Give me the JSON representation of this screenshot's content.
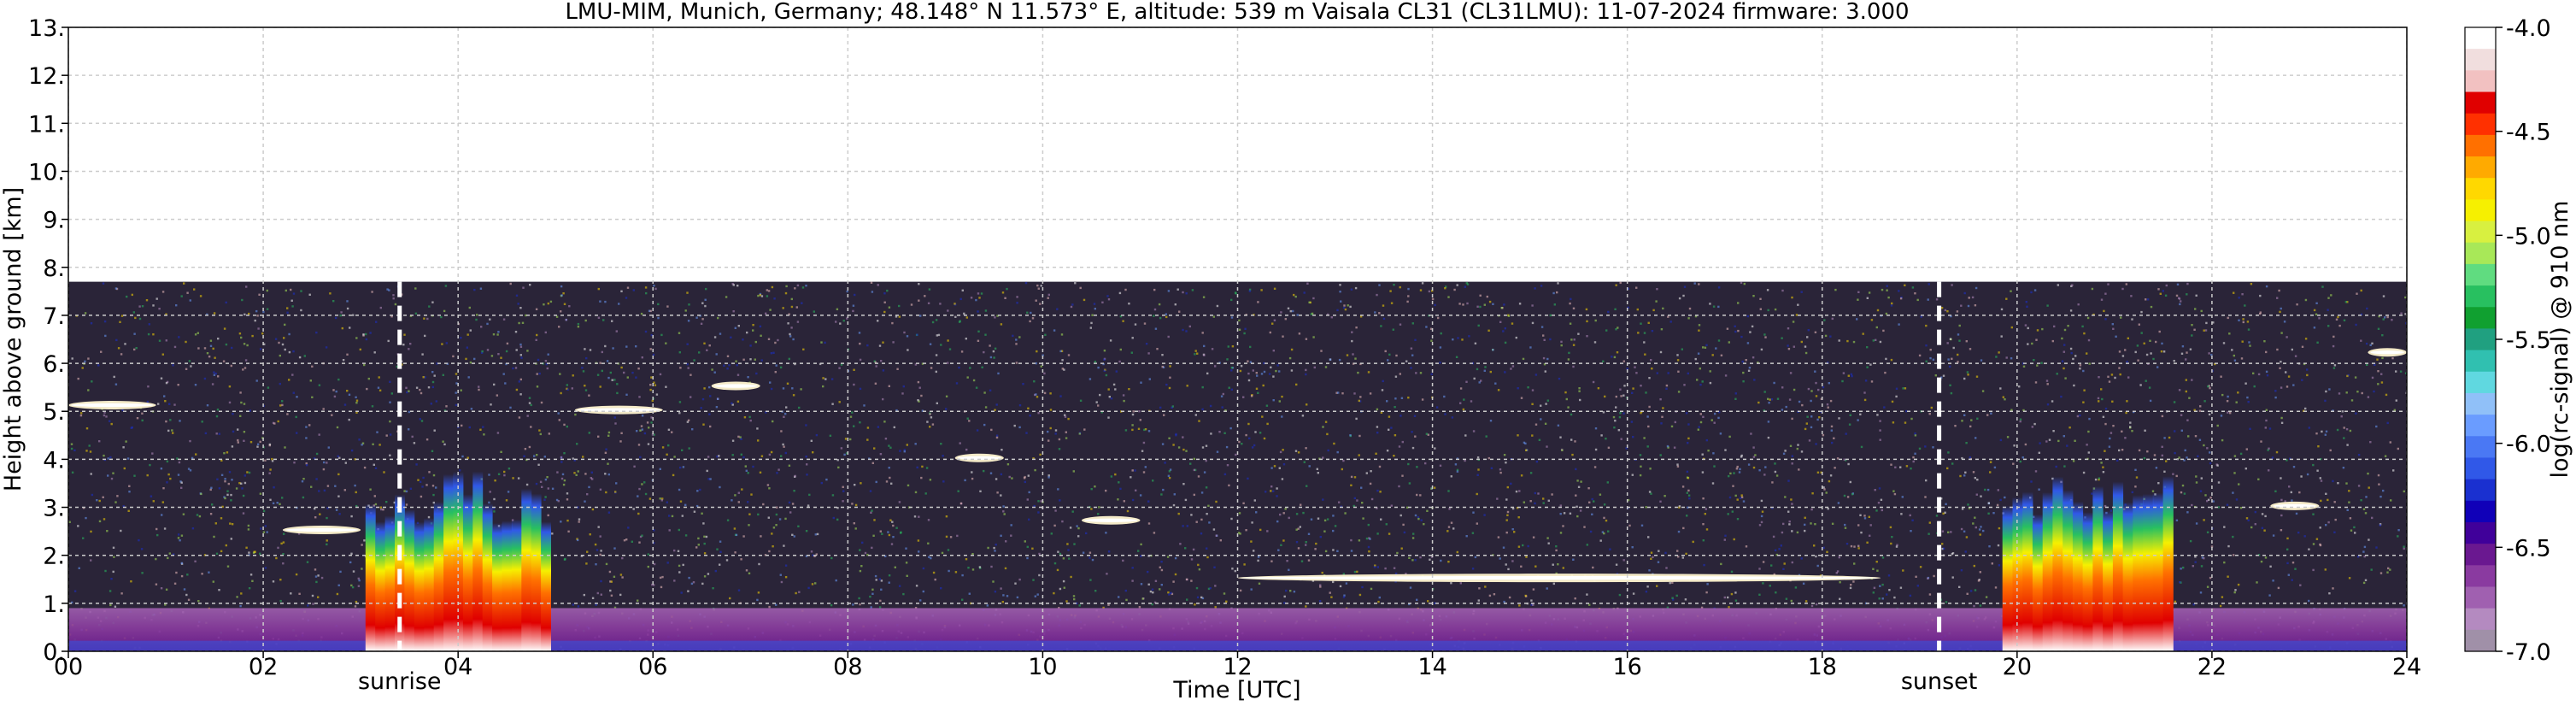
{
  "chart_data": {
    "type": "heatmap",
    "title": "LMU-MIM, Munich, Germany; 48.148° N 11.573° E, altitude: 539 m    Vaisala CL31 (CL31LMU): 11-07-2024    firmware: 3.000",
    "xlabel": "Time [UTC]",
    "ylabel": "Height above ground [km]",
    "xlim": [
      0,
      24
    ],
    "ylim": [
      0,
      13
    ],
    "x_ticks": [
      0,
      2,
      4,
      6,
      8,
      10,
      12,
      14,
      16,
      18,
      20,
      22,
      24
    ],
    "x_tick_labels": [
      "00",
      "02",
      "04",
      "06",
      "08",
      "10",
      "12",
      "14",
      "16",
      "18",
      "20",
      "22",
      "24"
    ],
    "y_ticks": [
      0,
      1,
      2,
      3,
      4,
      5,
      6,
      7,
      8,
      9,
      10,
      11,
      12,
      13
    ],
    "y_tick_labels": [
      "0.",
      "1.",
      "2.",
      "3.",
      "4.",
      "5.",
      "6.",
      "7.",
      "8.",
      "9.",
      "10.",
      "11.",
      "12.",
      "13."
    ],
    "grid": true,
    "data_top_km": 7.7,
    "markers": [
      {
        "label": "sunrise",
        "time": 3.4
      },
      {
        "label": "sunset",
        "time": 19.2
      }
    ],
    "colorbar": {
      "label": "log(rc-signal) @ 910 nm",
      "range": [
        -7.0,
        -4.0
      ],
      "ticks": [
        -4.0,
        -4.5,
        -5.0,
        -5.5,
        -6.0,
        -6.5,
        -7.0
      ],
      "tick_labels": [
        "-4.0",
        "-4.5",
        "-5.0",
        "-5.5",
        "-6.0",
        "-6.5",
        "-7.0"
      ],
      "colors": [
        "#ffffff",
        "#f1dede",
        "#f2c1c1",
        "#e00000",
        "#ff3000",
        "#ff7000",
        "#ffaa00",
        "#ffd800",
        "#f6f000",
        "#d8f040",
        "#a8e858",
        "#60dc80",
        "#28c060",
        "#10a030",
        "#20a080",
        "#30c0b0",
        "#60d8e0",
        "#90c0f8",
        "#6a9cff",
        "#4a78f4",
        "#3058e8",
        "#1a30d0",
        "#1000b8",
        "#40009a",
        "#6a1890",
        "#8a3aa0",
        "#a060b0",
        "#b48ac0",
        "#a090a8"
      ]
    },
    "features": [
      {
        "name": "boundary layer",
        "t0": 0,
        "t1": 24,
        "top_km": 0.9
      },
      {
        "name": "convective plume",
        "t0": 3.05,
        "t1": 3.75,
        "top_km": 3.3
      },
      {
        "name": "convective plume",
        "t0": 3.75,
        "t1": 4.35,
        "top_km": 3.9
      },
      {
        "name": "convective plume",
        "t0": 4.35,
        "t1": 4.95,
        "top_km": 3.5
      },
      {
        "name": "convective plume",
        "t0": 19.85,
        "t1": 21.6,
        "top_km": 3.7
      },
      {
        "name": "cloud",
        "t0": 0.0,
        "t1": 0.9,
        "top_km": 5.2
      },
      {
        "name": "cloud",
        "t0": 2.2,
        "t1": 3.0,
        "top_km": 2.6
      },
      {
        "name": "cloud",
        "t0": 5.2,
        "t1": 6.1,
        "top_km": 5.1
      },
      {
        "name": "cloud",
        "t0": 6.6,
        "t1": 7.1,
        "top_km": 5.6
      },
      {
        "name": "cloud",
        "t0": 9.1,
        "t1": 9.6,
        "top_km": 4.1
      },
      {
        "name": "cloud",
        "t0": 10.4,
        "t1": 11.0,
        "top_km": 2.8
      },
      {
        "name": "cloud",
        "t0": 12.0,
        "t1": 18.6,
        "top_km": 1.6
      },
      {
        "name": "cloud",
        "t0": 22.6,
        "t1": 23.1,
        "top_km": 3.1
      },
      {
        "name": "cloud",
        "t0": 23.6,
        "t1": 24.0,
        "top_km": 6.3
      }
    ]
  }
}
